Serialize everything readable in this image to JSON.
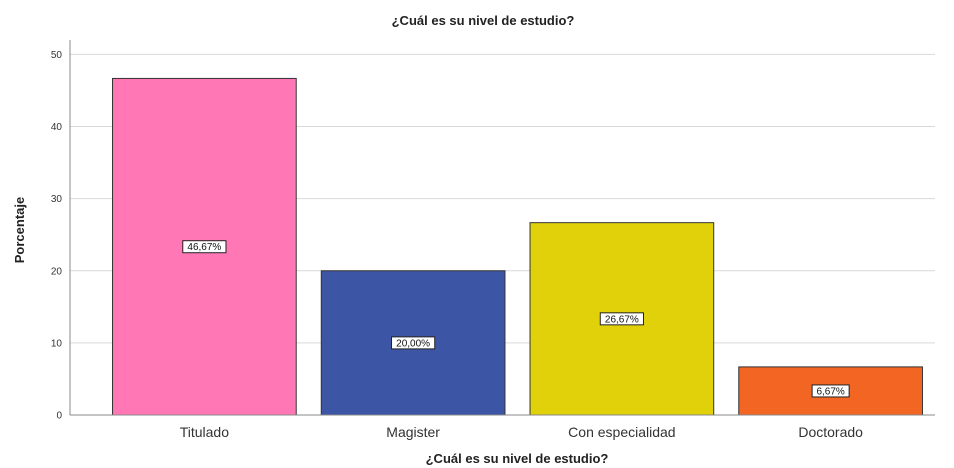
{
  "chart_data": {
    "type": "bar",
    "title": "¿Cuál es su nivel de estudio?",
    "xlabel": "¿Cuál es su nivel de estudio?",
    "ylabel": "Porcentaje",
    "ylim": [
      0,
      52
    ],
    "yticks": [
      0,
      10,
      20,
      30,
      40,
      50
    ],
    "grid": true,
    "categories": [
      "Titulado",
      "Magister",
      "Con especialidad",
      "Doctorado"
    ],
    "values": [
      46.67,
      20.0,
      26.67,
      6.67
    ],
    "data_labels": [
      "46,67%",
      "20,00%",
      "26,67%",
      "6,67%"
    ],
    "colors": [
      "#ff77b4",
      "#3c55a5",
      "#e0d10a",
      "#f26522"
    ]
  }
}
